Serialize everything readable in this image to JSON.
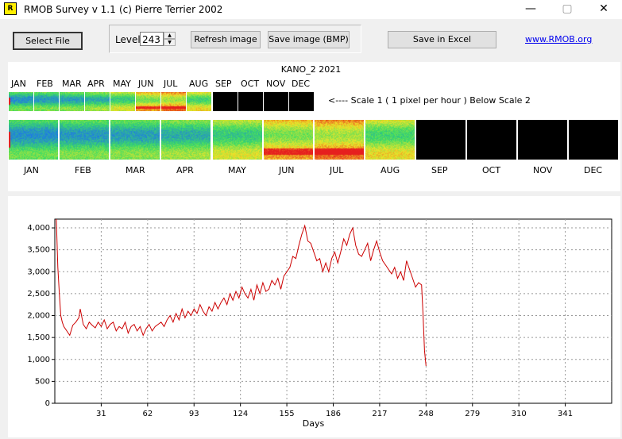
{
  "window": {
    "app_icon_letter": "R",
    "title": "RMOB Survey v 1.1",
    "copyright": "(c) Pierre Terrier 2002",
    "minimize_glyph": "—",
    "maximize_glyph": "▢",
    "close_glyph": "✕"
  },
  "toolbar": {
    "select_file": "Select File",
    "level_label": "Level",
    "level_value": "243",
    "refresh_image": "Refresh image",
    "save_image": "Save image (BMP)",
    "save_excel": "Save in Excel",
    "link": "www.RMOB.org",
    "spin_up": "▲",
    "spin_down": "▼"
  },
  "image_panel": {
    "title": "KANO_2  2021",
    "scale_note": "<----  Scale 1  ( 1 pixel per hour )   Below Scale 2",
    "months": [
      "JAN",
      "FEB",
      "MAR",
      "APR",
      "MAY",
      "JUN",
      "JUL",
      "AUG",
      "SEP",
      "OCT",
      "NOV",
      "DEC"
    ],
    "months_with_data": 8,
    "colors": {
      "blue": "#1e78e6",
      "green": "#3cdc64",
      "yellow": "#f0e628",
      "red": "#e61e1e",
      "empty": "#000000"
    }
  },
  "chart_data": {
    "type": "line",
    "title": "",
    "xlabel": "Days",
    "ylabel": "",
    "xlim": [
      0,
      372
    ],
    "ylim": [
      0,
      4200
    ],
    "x_ticks": [
      31,
      62,
      93,
      124,
      155,
      186,
      217,
      248,
      279,
      310,
      341
    ],
    "y_ticks": [
      0,
      500,
      1000,
      1500,
      2000,
      2500,
      3000,
      3500,
      4000
    ],
    "y_tick_labels": [
      "0",
      "500",
      "1,000",
      "1,500",
      "2,000",
      "2,500",
      "3,000",
      "3,500",
      "4,000"
    ],
    "grid": true,
    "line_color": "#cc0000",
    "series": [
      {
        "name": "",
        "points": [
          [
            1,
            4200
          ],
          [
            2,
            3100
          ],
          [
            3,
            2500
          ],
          [
            4,
            2000
          ],
          [
            5,
            1850
          ],
          [
            6,
            1750
          ],
          [
            8,
            1650
          ],
          [
            10,
            1550
          ],
          [
            12,
            1780
          ],
          [
            14,
            1850
          ],
          [
            16,
            1950
          ],
          [
            17,
            2150
          ],
          [
            19,
            1800
          ],
          [
            21,
            1700
          ],
          [
            23,
            1850
          ],
          [
            25,
            1780
          ],
          [
            27,
            1720
          ],
          [
            29,
            1850
          ],
          [
            31,
            1750
          ],
          [
            33,
            1900
          ],
          [
            35,
            1700
          ],
          [
            37,
            1800
          ],
          [
            39,
            1850
          ],
          [
            41,
            1650
          ],
          [
            43,
            1750
          ],
          [
            45,
            1700
          ],
          [
            47,
            1850
          ],
          [
            49,
            1600
          ],
          [
            51,
            1750
          ],
          [
            53,
            1800
          ],
          [
            55,
            1650
          ],
          [
            57,
            1750
          ],
          [
            59,
            1550
          ],
          [
            61,
            1700
          ],
          [
            63,
            1800
          ],
          [
            65,
            1650
          ],
          [
            67,
            1750
          ],
          [
            69,
            1800
          ],
          [
            71,
            1850
          ],
          [
            73,
            1750
          ],
          [
            75,
            1900
          ],
          [
            77,
            2000
          ],
          [
            79,
            1850
          ],
          [
            81,
            2050
          ],
          [
            83,
            1900
          ],
          [
            85,
            2150
          ],
          [
            87,
            1950
          ],
          [
            89,
            2100
          ],
          [
            91,
            2000
          ],
          [
            93,
            2150
          ],
          [
            95,
            2050
          ],
          [
            97,
            2250
          ],
          [
            99,
            2100
          ],
          [
            101,
            2000
          ],
          [
            103,
            2200
          ],
          [
            105,
            2100
          ],
          [
            107,
            2300
          ],
          [
            109,
            2150
          ],
          [
            111,
            2300
          ],
          [
            113,
            2400
          ],
          [
            115,
            2250
          ],
          [
            117,
            2500
          ],
          [
            119,
            2350
          ],
          [
            121,
            2550
          ],
          [
            123,
            2400
          ],
          [
            125,
            2650
          ],
          [
            127,
            2500
          ],
          [
            129,
            2400
          ],
          [
            131,
            2600
          ],
          [
            133,
            2350
          ],
          [
            135,
            2700
          ],
          [
            137,
            2500
          ],
          [
            139,
            2750
          ],
          [
            141,
            2550
          ],
          [
            143,
            2600
          ],
          [
            145,
            2800
          ],
          [
            147,
            2700
          ],
          [
            149,
            2850
          ],
          [
            151,
            2600
          ],
          [
            153,
            2900
          ],
          [
            155,
            3000
          ],
          [
            157,
            3100
          ],
          [
            159,
            3350
          ],
          [
            161,
            3300
          ],
          [
            163,
            3600
          ],
          [
            165,
            3850
          ],
          [
            167,
            4050
          ],
          [
            169,
            3700
          ],
          [
            171,
            3650
          ],
          [
            173,
            3450
          ],
          [
            175,
            3250
          ],
          [
            177,
            3300
          ],
          [
            179,
            3000
          ],
          [
            181,
            3200
          ],
          [
            183,
            3000
          ],
          [
            185,
            3300
          ],
          [
            187,
            3450
          ],
          [
            189,
            3200
          ],
          [
            191,
            3450
          ],
          [
            193,
            3750
          ],
          [
            195,
            3600
          ],
          [
            197,
            3850
          ],
          [
            199,
            4000
          ],
          [
            201,
            3600
          ],
          [
            203,
            3400
          ],
          [
            205,
            3350
          ],
          [
            207,
            3500
          ],
          [
            209,
            3650
          ],
          [
            211,
            3250
          ],
          [
            213,
            3500
          ],
          [
            215,
            3700
          ],
          [
            217,
            3450
          ],
          [
            219,
            3250
          ],
          [
            221,
            3150
          ],
          [
            223,
            3050
          ],
          [
            225,
            2950
          ],
          [
            227,
            3100
          ],
          [
            229,
            2850
          ],
          [
            231,
            3000
          ],
          [
            233,
            2800
          ],
          [
            235,
            3250
          ],
          [
            237,
            3050
          ],
          [
            239,
            2850
          ],
          [
            241,
            2650
          ],
          [
            243,
            2750
          ],
          [
            245,
            2700
          ],
          [
            246,
            2000
          ],
          [
            247,
            1200
          ],
          [
            248,
            850
          ]
        ]
      }
    ]
  }
}
